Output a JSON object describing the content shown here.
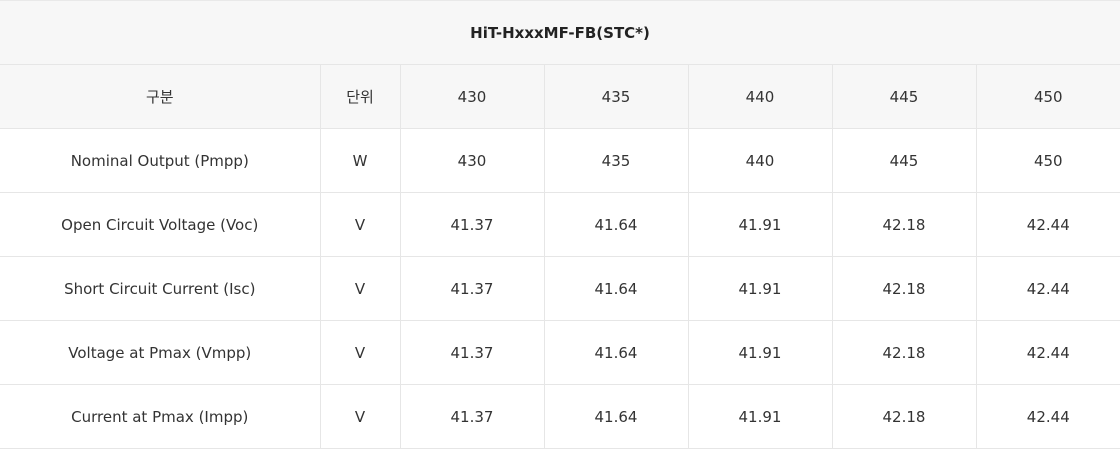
{
  "table": {
    "title": "HiT-HxxxMF-FB(STC*)",
    "headers": [
      "구분",
      "단위",
      "430",
      "435",
      "440",
      "445",
      "450"
    ],
    "rows": [
      {
        "label": "Nominal Output (Pmpp)",
        "unit": "W",
        "values": [
          "430",
          "435",
          "440",
          "445",
          "450"
        ]
      },
      {
        "label": "Open Circuit Voltage (Voc)",
        "unit": "V",
        "values": [
          "41.37",
          "41.64",
          "41.91",
          "42.18",
          "42.44"
        ]
      },
      {
        "label": "Short Circuit Current (Isc)",
        "unit": "V",
        "values": [
          "41.37",
          "41.64",
          "41.91",
          "42.18",
          "42.44"
        ]
      },
      {
        "label": "Voltage at Pmax (Vmpp)",
        "unit": "V",
        "values": [
          "41.37",
          "41.64",
          "41.91",
          "42.18",
          "42.44"
        ]
      },
      {
        "label": "Current at Pmax (Impp)",
        "unit": "V",
        "values": [
          "41.37",
          "41.64",
          "41.91",
          "42.18",
          "42.44"
        ]
      }
    ]
  }
}
